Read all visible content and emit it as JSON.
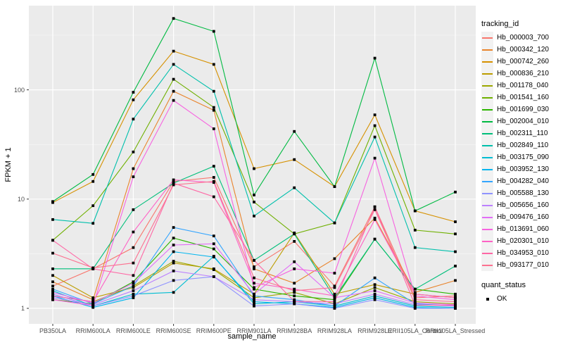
{
  "chart_data": {
    "type": "line",
    "title": "",
    "xlabel": "sample_name",
    "ylabel": "FPKM + 1",
    "y_scale": "log10",
    "ylim": [
      0.75,
      600
    ],
    "y_ticks": [
      1,
      10,
      100
    ],
    "y_minor_ticks": [
      3.1623,
      31.623,
      316.23
    ],
    "grid": true,
    "panel_background": "#ebebeb",
    "grid_color": "#ffffff",
    "tick_text_color": "#4d4d4d",
    "point_color": "#000000",
    "categories": [
      "PB350LA",
      "RRIM600LA",
      "RRIM600LE",
      "RRIM600SE",
      "RRIM600PE",
      "RRIM901LA",
      "RRIM928BA",
      "RRIM928LA",
      "RRIM928LE",
      "RRII105LA_Control",
      "RRII105LA_Stressed"
    ],
    "legend": {
      "title": "tracking_id",
      "position": "right"
    },
    "legend2": {
      "title": "quant_status",
      "items": [
        {
          "label": "OK",
          "marker": "black-square"
        }
      ]
    },
    "series": [
      {
        "name": "Hb_000003_700",
        "color": "#F8766D",
        "values": [
          1.6,
          2.3,
          3.6,
          14.5,
          15.8,
          2.4,
          4.1,
          1.6,
          8.5,
          1.25,
          1.3
        ]
      },
      {
        "name": "Hb_000342_120",
        "color": "#E9842C",
        "values": [
          1.75,
          1.2,
          19,
          97,
          65,
          2.3,
          1.7,
          2.85,
          6.7,
          1.4,
          1.8
        ]
      },
      {
        "name": "Hb_000742_260",
        "color": "#D69100",
        "values": [
          9.3,
          14.5,
          81,
          226,
          171,
          19,
          23,
          13,
          59,
          7.8,
          6.2
        ]
      },
      {
        "name": "Hb_000836_210",
        "color": "#BC9D00",
        "values": [
          2.0,
          1.25,
          1.55,
          2.6,
          2.3,
          1.35,
          4.9,
          1.35,
          1.65,
          1.35,
          1.25
        ]
      },
      {
        "name": "Hb_001178_040",
        "color": "#9CA700",
        "values": [
          1.3,
          1.15,
          1.6,
          2.7,
          2.26,
          1.25,
          1.4,
          1.1,
          1.55,
          1.15,
          1.1
        ]
      },
      {
        "name": "Hb_001541_160",
        "color": "#6FB000",
        "values": [
          4.2,
          8.7,
          27,
          125,
          69,
          9.4,
          4.8,
          6.05,
          47,
          5.2,
          4.8
        ]
      },
      {
        "name": "Hb_001699_030",
        "color": "#2CB600",
        "values": [
          1.2,
          1.1,
          1.75,
          4.4,
          3.5,
          1.5,
          1.3,
          1.2,
          4.3,
          1.5,
          1.35
        ]
      },
      {
        "name": "Hb_002004_010",
        "color": "#00BA42",
        "values": [
          9.5,
          16.8,
          95,
          450,
          343,
          10.9,
          41.6,
          13,
          195,
          7.8,
          11.6
        ]
      },
      {
        "name": "Hb_002311_110",
        "color": "#00BF7B",
        "values": [
          2.3,
          2.3,
          8.0,
          14,
          20,
          2.75,
          4.8,
          1.25,
          4.3,
          1.5,
          2.44
        ]
      },
      {
        "name": "Hb_002849_110",
        "color": "#00C0AC",
        "values": [
          6.5,
          6.0,
          54,
          171,
          97,
          7.0,
          12.7,
          6.05,
          37,
          3.6,
          3.3
        ]
      },
      {
        "name": "Hb_003175_090",
        "color": "#00BDD2",
        "values": [
          1.45,
          1.05,
          1.35,
          1.4,
          3.0,
          1.1,
          1.15,
          1.05,
          1.3,
          1.05,
          1.02
        ]
      },
      {
        "name": "Hb_003952_130",
        "color": "#00B5EE",
        "values": [
          1.3,
          1.02,
          1.25,
          3.3,
          2.95,
          1.15,
          1.1,
          1.02,
          1.25,
          1.02,
          1.0
        ]
      },
      {
        "name": "Hb_004282_040",
        "color": "#33A5FF",
        "values": [
          1.5,
          1.1,
          1.6,
          5.5,
          4.6,
          1.3,
          1.2,
          1.05,
          1.9,
          1.1,
          1.05
        ]
      },
      {
        "name": "Hb_005588_130",
        "color": "#8F93FF",
        "values": [
          1.35,
          1.05,
          1.3,
          1.8,
          1.95,
          1.05,
          1.1,
          1.0,
          1.2,
          1.0,
          1.0
        ]
      },
      {
        "name": "Hb_005656_160",
        "color": "#BC81FF",
        "values": [
          1.25,
          1.08,
          1.45,
          2.2,
          1.95,
          1.2,
          1.15,
          1.1,
          1.35,
          1.08,
          1.05
        ]
      },
      {
        "name": "Hb_009476_160",
        "color": "#E26EF7",
        "values": [
          1.4,
          1.12,
          1.7,
          3.8,
          3.9,
          1.35,
          2.67,
          1.25,
          1.45,
          1.12,
          1.08
        ]
      },
      {
        "name": "Hb_013691_060",
        "color": "#F763E0",
        "values": [
          1.2,
          1.06,
          16,
          80,
          44,
          1.55,
          2.3,
          2.1,
          23.7,
          1.3,
          1.2
        ]
      },
      {
        "name": "Hb_020301_010",
        "color": "#FF61C5",
        "values": [
          1.3,
          1.15,
          5.0,
          15,
          14.2,
          1.7,
          1.5,
          1.3,
          6.5,
          1.35,
          1.25
        ]
      },
      {
        "name": "Hb_034953_010",
        "color": "#FF67A5",
        "values": [
          4.2,
          2.3,
          2.0,
          14,
          10.5,
          2.75,
          1.16,
          1.15,
          8.5,
          1.07,
          1.07
        ]
      },
      {
        "name": "Hb_093177_010",
        "color": "#FC7190",
        "values": [
          3.2,
          2.35,
          2.6,
          13.5,
          14.5,
          1.9,
          1.45,
          1.55,
          8.0,
          1.2,
          1.15
        ]
      }
    ]
  }
}
